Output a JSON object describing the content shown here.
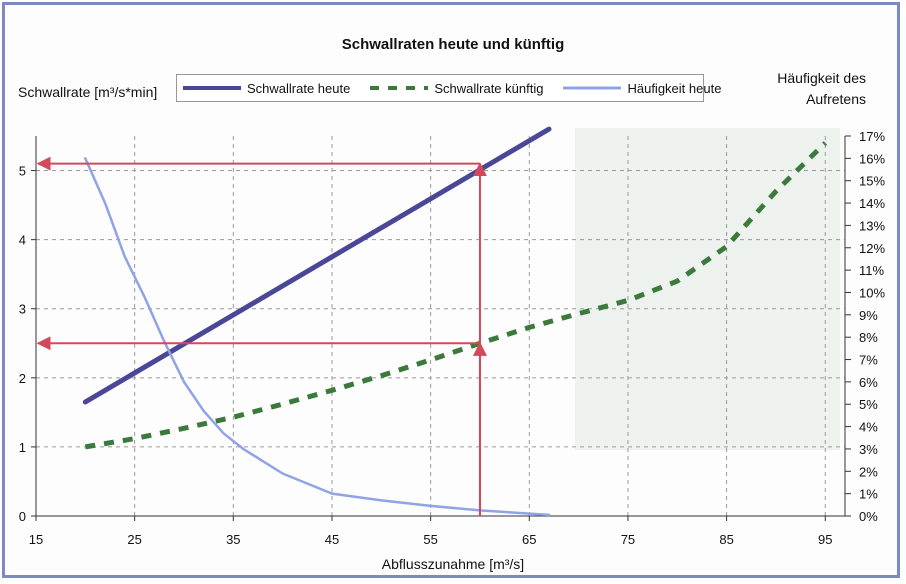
{
  "chart_data": {
    "type": "line",
    "title": "Schwallraten heute und künftig",
    "xlabel": "Abflusszunahme [m³/s]",
    "ylabel": "Schwallrate [m³/s*min]",
    "ylabel_right": [
      "Häufigkeit des",
      "Aufretens"
    ],
    "xlim": [
      15,
      97
    ],
    "ylim": [
      0,
      5.5
    ],
    "ylim_right": [
      0,
      17
    ],
    "x_ticks": [
      15,
      25,
      35,
      45,
      55,
      65,
      75,
      85,
      95
    ],
    "y_ticks": [
      0,
      1,
      2,
      3,
      4,
      5
    ],
    "y_ticks_right": [
      "0%",
      "1%",
      "2%",
      "3%",
      "4%",
      "5%",
      "6%",
      "7%",
      "8%",
      "9%",
      "10%",
      "11%",
      "12%",
      "13%",
      "14%",
      "15%",
      "16%",
      "17%"
    ],
    "grid": true,
    "legend_position": "top",
    "series": [
      {
        "name": "Schwallrate heute",
        "axis": "left",
        "color": "#4b4797",
        "style": "solid",
        "x": [
          20,
          67
        ],
        "y": [
          1.65,
          5.6
        ]
      },
      {
        "name": "Schwallrate künftig",
        "axis": "left",
        "color": "#3c7a3c",
        "style": "dashed",
        "x": [
          20,
          25,
          30,
          35,
          40,
          45,
          50,
          55,
          60,
          65,
          70,
          75,
          80,
          85,
          90,
          95
        ],
        "y": [
          1.0,
          1.12,
          1.27,
          1.43,
          1.62,
          1.82,
          2.03,
          2.26,
          2.5,
          2.73,
          2.93,
          3.12,
          3.4,
          3.9,
          4.7,
          5.4
        ]
      },
      {
        "name": "Häufigkeit heute",
        "axis": "right",
        "color": "#8fa3e6",
        "style": "solid",
        "x": [
          20,
          22,
          24,
          26,
          28,
          30,
          32,
          34,
          36,
          40,
          45,
          50,
          55,
          60,
          67
        ],
        "y": [
          16.0,
          14.0,
          11.6,
          9.8,
          7.8,
          6.0,
          4.7,
          3.7,
          3.0,
          1.9,
          1.0,
          0.7,
          0.45,
          0.25,
          0.05
        ]
      }
    ],
    "annotations": [
      {
        "type": "arrow-path",
        "color": "#d24a5a",
        "x": 60,
        "y_from": 0,
        "y_to": 5.1,
        "x_to": 15
      },
      {
        "type": "arrow-path",
        "color": "#d24a5a",
        "x": 60,
        "y_from": 0,
        "y_to": 2.5,
        "x_to": 15
      }
    ]
  },
  "legend": [
    {
      "label": "Schwallrate heute"
    },
    {
      "label": "Schwallrate künftig"
    },
    {
      "label": "Häufigkeit heute"
    }
  ]
}
